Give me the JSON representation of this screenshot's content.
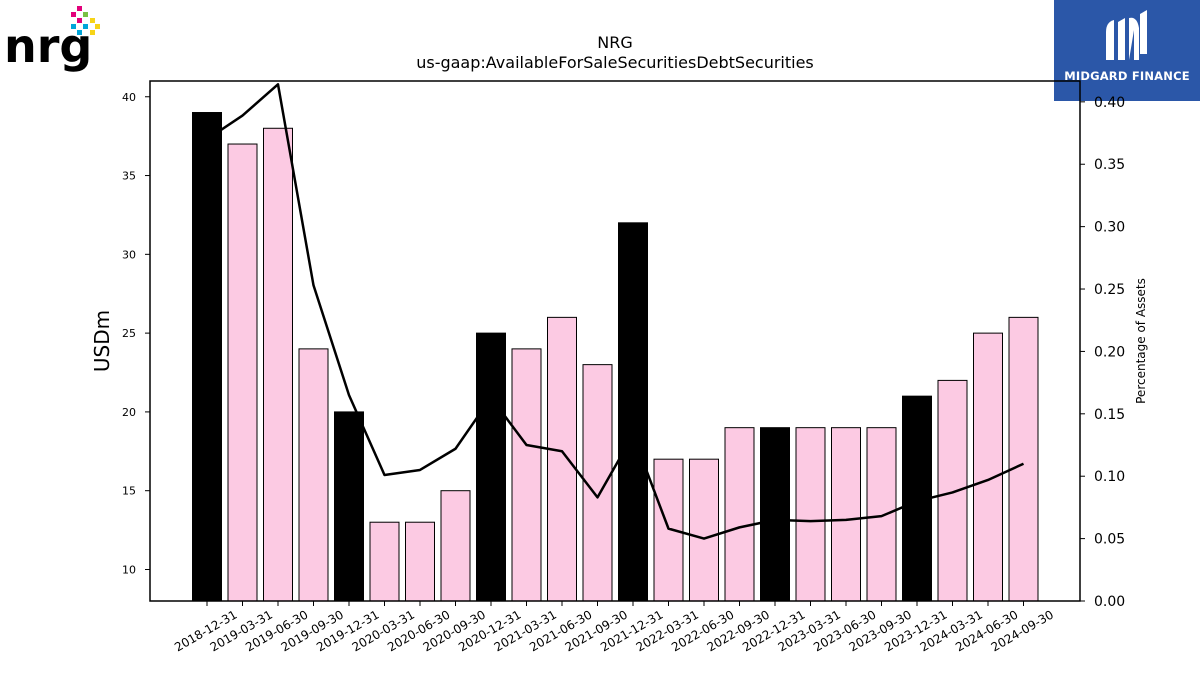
{
  "logos": {
    "left_text": "nrg",
    "right_text": "MIDGARD FINANCE"
  },
  "chart_data": {
    "type": "bar",
    "title": "NRG",
    "subtitle": "us-gaap:AvailableForSaleSecuritiesDebtSecurities",
    "ylabel": "USDm",
    "y2label": "Percentage of Assets",
    "ylim": [
      8,
      41
    ],
    "y2lim": [
      0,
      0.4167
    ],
    "yticks": [
      10,
      15,
      20,
      25,
      30,
      35,
      40
    ],
    "y2ticks": [
      "0.00",
      "0.05",
      "0.10",
      "0.15",
      "0.20",
      "0.25",
      "0.30",
      "0.35",
      "0.40"
    ],
    "categories": [
      "2018-12-31",
      "2019-03-31",
      "2019-06-30",
      "2019-09-30",
      "2019-12-31",
      "2020-03-31",
      "2020-06-30",
      "2020-09-30",
      "2020-12-31",
      "2021-03-31",
      "2021-06-30",
      "2021-09-30",
      "2021-12-31",
      "2022-03-31",
      "2022-06-30",
      "2022-09-30",
      "2022-12-31",
      "2023-03-31",
      "2023-06-30",
      "2023-09-30",
      "2023-12-31",
      "2024-03-31",
      "2024-06-30",
      "2024-09-30"
    ],
    "values": [
      39,
      37,
      38,
      24,
      20,
      13,
      13,
      15,
      25,
      24,
      26,
      23,
      32,
      17,
      17,
      19,
      19,
      19,
      19,
      19,
      21,
      22,
      25,
      26
    ],
    "year_end": [
      true,
      false,
      false,
      false,
      true,
      false,
      false,
      false,
      true,
      false,
      false,
      false,
      true,
      false,
      false,
      false,
      true,
      false,
      false,
      false,
      true,
      false,
      false,
      false
    ],
    "pct_of_assets": [
      0.37,
      0.389,
      0.414,
      0.253,
      0.165,
      0.101,
      0.105,
      0.122,
      0.163,
      0.125,
      0.12,
      0.083,
      0.133,
      0.058,
      0.05,
      0.059,
      0.065,
      0.064,
      0.065,
      0.068,
      0.08,
      0.087,
      0.097,
      0.11
    ],
    "colors": {
      "year_end_bar": "#000000",
      "quarter_bar": "#fccae3",
      "line": "#000000"
    },
    "legend": "none",
    "grid": false
  }
}
